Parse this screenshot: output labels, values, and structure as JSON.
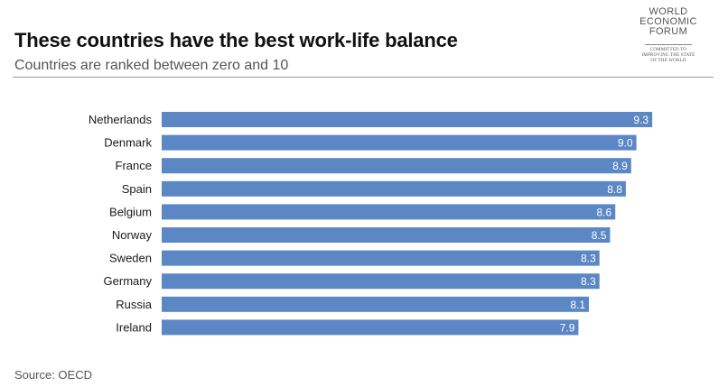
{
  "header": {
    "title": "These countries have the best work-life balance",
    "subtitle": "Countries are ranked between zero and 10"
  },
  "logo": {
    "line1": "WORLD",
    "line2": "ECONOMIC",
    "line3": "FORUM",
    "tagline1": "COMMITTED TO",
    "tagline2": "IMPROVING THE STATE",
    "tagline3": "OF THE WORLD"
  },
  "footer": {
    "source": "Source: OECD"
  },
  "colors": {
    "bar": "#5b87c4",
    "bar_label": "#ffffff",
    "category_label": "#1a1a1a"
  },
  "chart_data": {
    "type": "bar",
    "orientation": "horizontal",
    "title": "These countries have the best work-life balance",
    "subtitle": "Countries are ranked between zero and 10",
    "categories": [
      "Netherlands",
      "Denmark",
      "France",
      "Spain",
      "Belgium",
      "Norway",
      "Sweden",
      "Germany",
      "Russia",
      "Ireland"
    ],
    "values": [
      9.3,
      9.0,
      8.9,
      8.8,
      8.6,
      8.5,
      8.3,
      8.3,
      8.1,
      7.9
    ],
    "value_labels": [
      "9.3",
      "9.0",
      "8.9",
      "8.8",
      "8.6",
      "8.5",
      "8.3",
      "8.3",
      "8.1",
      "7.9"
    ],
    "xlim": [
      0,
      10
    ],
    "grid": false,
    "legend": "none",
    "data_labels": "inside-end"
  }
}
